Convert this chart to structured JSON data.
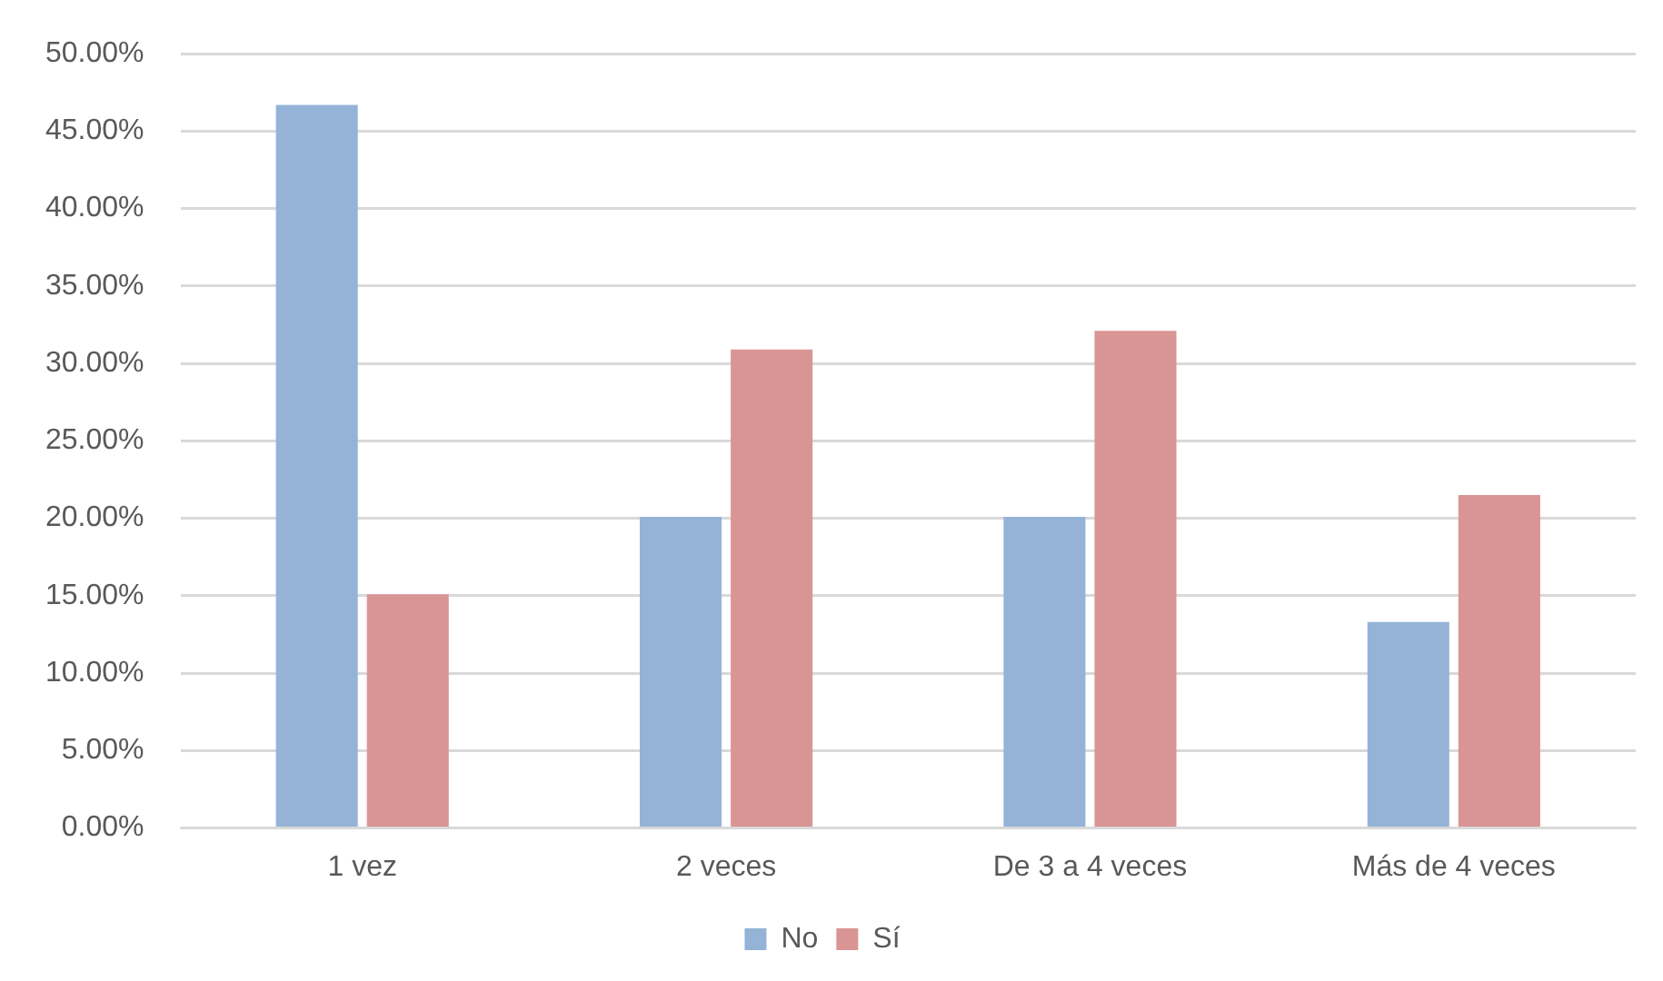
{
  "chart_data": {
    "type": "bar",
    "categories": [
      "1 vez",
      "2 veces",
      "De 3 a 4 veces",
      "Más de 4 veces"
    ],
    "series": [
      {
        "name": "No",
        "color": "#95b3d7",
        "values": [
          46.7,
          20.1,
          20.1,
          13.3
        ]
      },
      {
        "name": "Sí",
        "color": "#d99594",
        "values": [
          15.1,
          30.9,
          32.1,
          21.5
        ]
      }
    ],
    "ylim": [
      0,
      50
    ],
    "yticks": [
      {
        "value": 0,
        "label": "0.00%"
      },
      {
        "value": 5,
        "label": "5.00%"
      },
      {
        "value": 10,
        "label": "10.00%"
      },
      {
        "value": 15,
        "label": "15.00%"
      },
      {
        "value": 20,
        "label": "20.00%"
      },
      {
        "value": 25,
        "label": "25.00%"
      },
      {
        "value": 30,
        "label": "30.00%"
      },
      {
        "value": 35,
        "label": "35.00%"
      },
      {
        "value": 40,
        "label": "40.00%"
      },
      {
        "value": 45,
        "label": "45.00%"
      },
      {
        "value": 50,
        "label": "50.00%"
      }
    ],
    "grid": "y",
    "legend": "bottom"
  }
}
